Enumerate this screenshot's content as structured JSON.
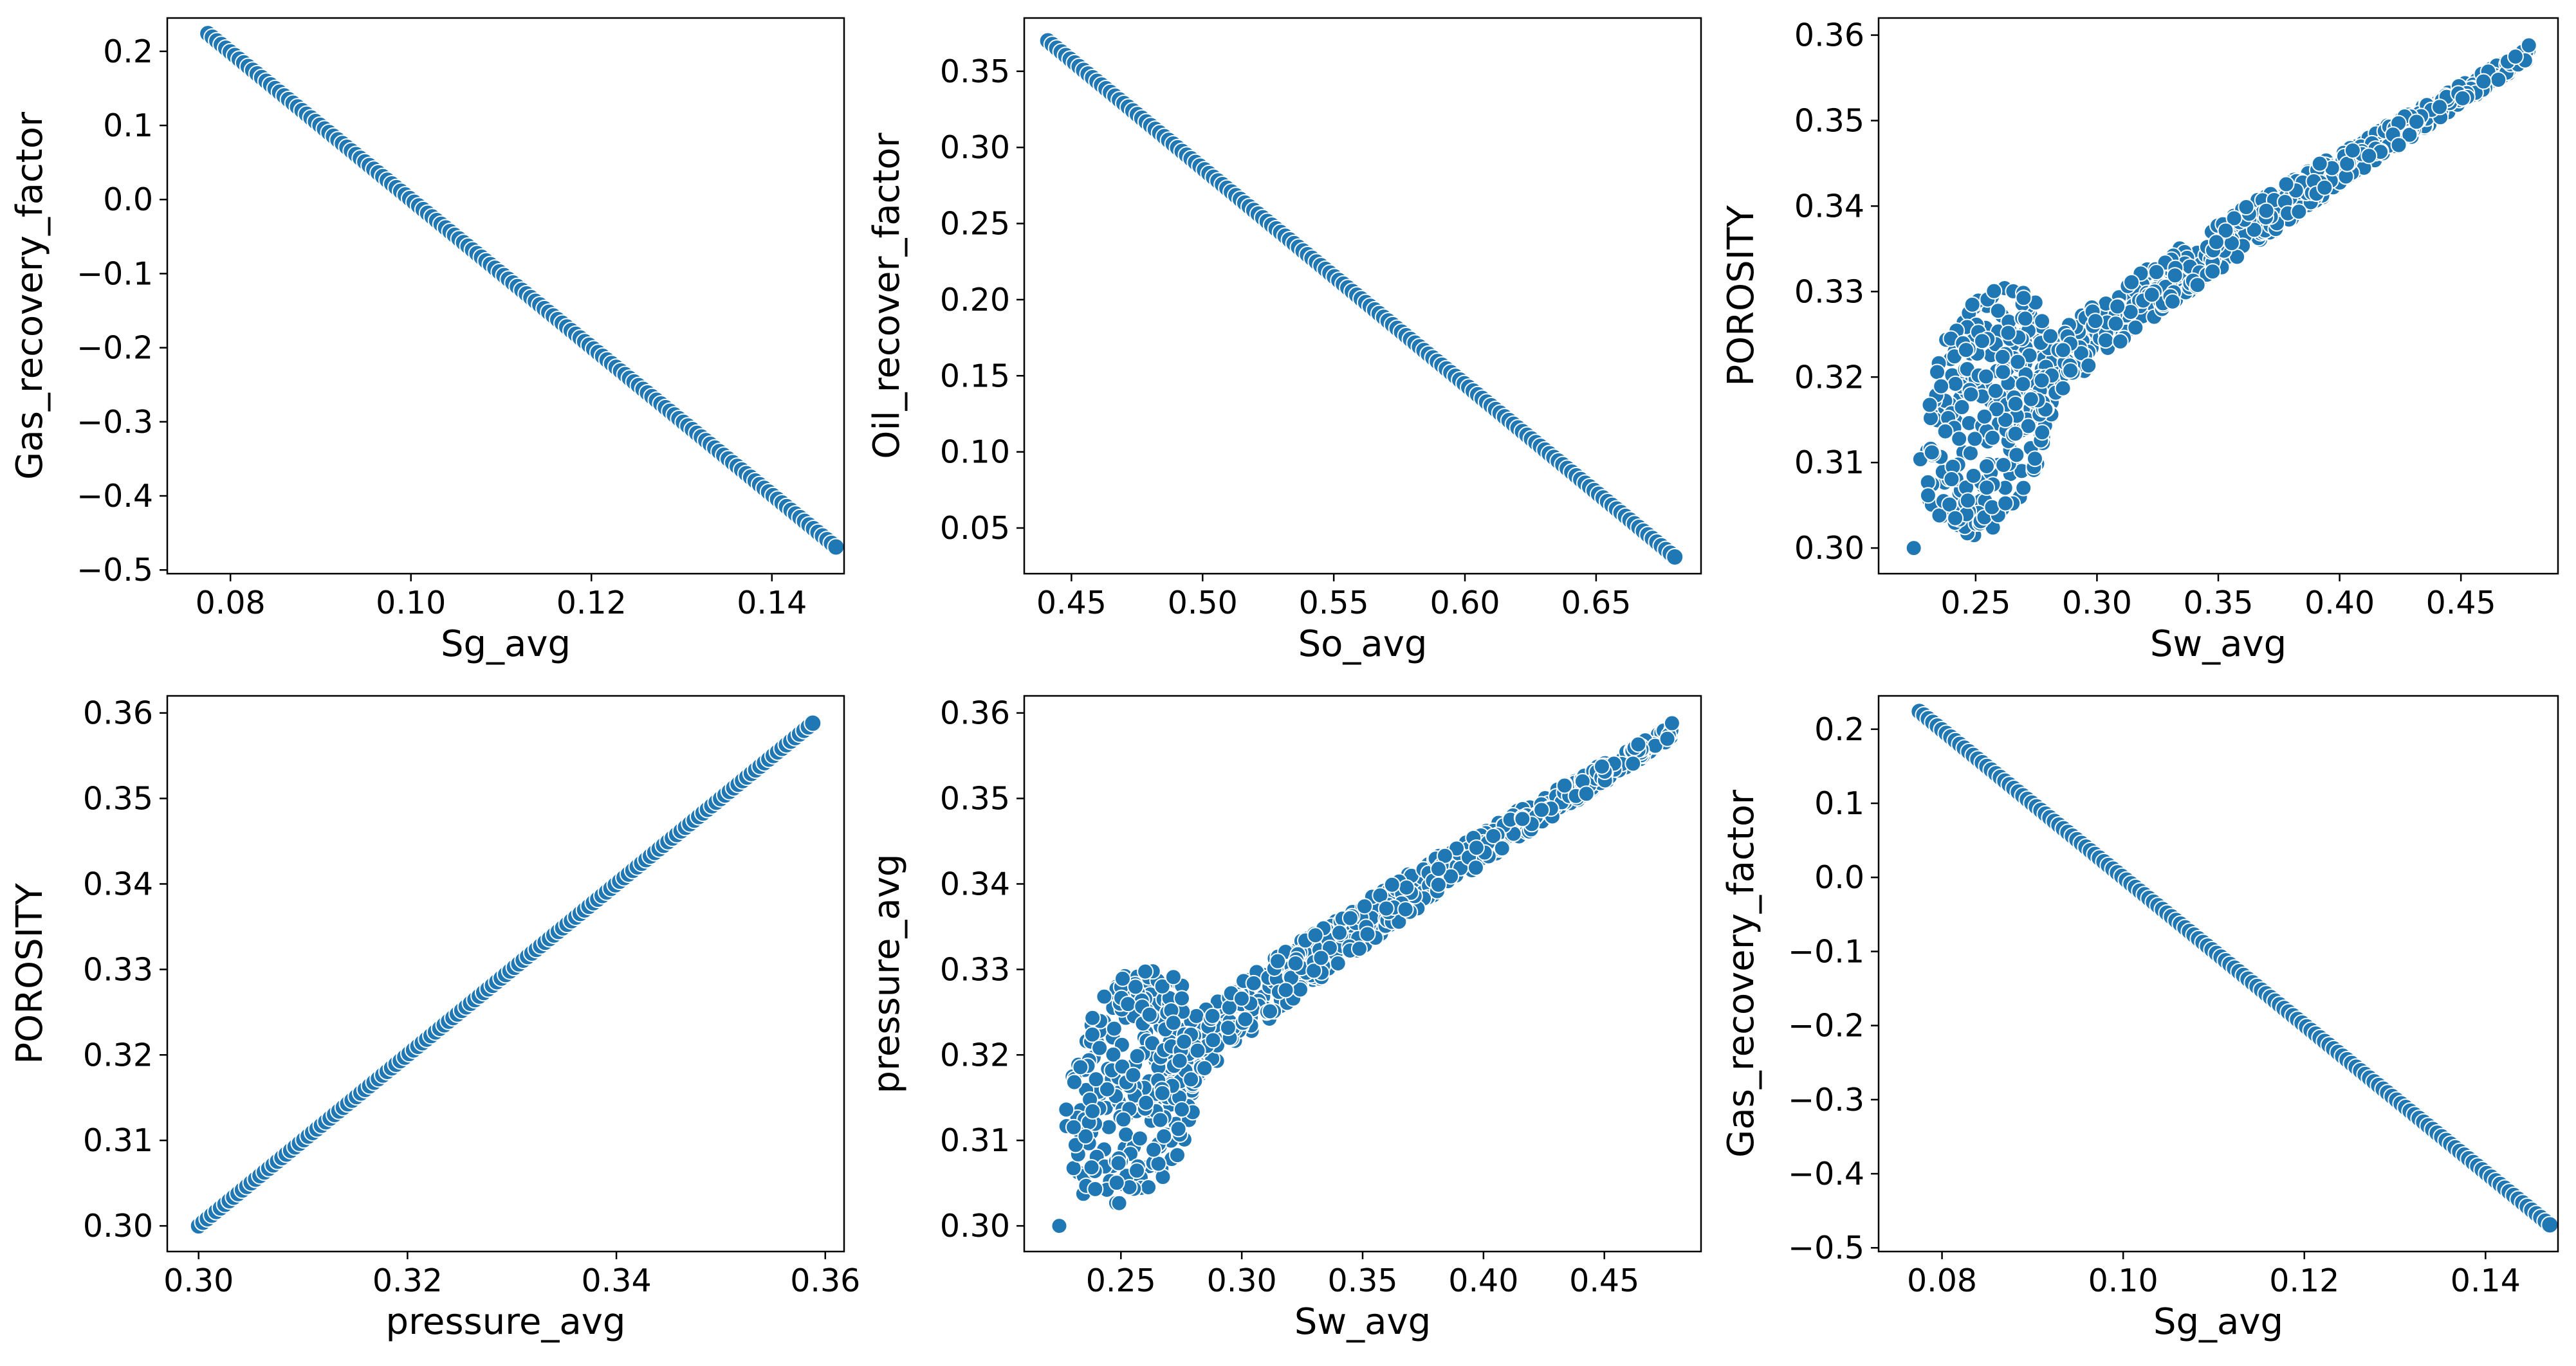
{
  "figure": {
    "layout": "2x3 grid of scatter plots"
  },
  "style": {
    "marker_color": "#1f77b4",
    "marker_edge_color": "#ffffff",
    "background": "#ffffff",
    "axes_color": "#000000"
  },
  "chart_data": [
    {
      "type": "scatter",
      "id": "sg-vs-gas-top",
      "xlabel": "Sg_avg",
      "ylabel": "Gas_recovery_factor",
      "xlim": [
        0.073,
        0.148
      ],
      "ylim": [
        -0.505,
        0.245
      ],
      "xticks": [
        0.08,
        0.1,
        0.12,
        0.14
      ],
      "xtick_labels": [
        "0.08",
        "0.10",
        "0.12",
        "0.14"
      ],
      "yticks": [
        0.2,
        0.1,
        0.0,
        -0.1,
        -0.2,
        -0.3,
        -0.4,
        -0.5
      ],
      "ytick_labels": [
        "0.2",
        "0.1",
        "0.0",
        "−0.1",
        "−0.2",
        "−0.3",
        "−0.4",
        "−0.5"
      ],
      "pattern": "line",
      "points": [
        [
          0.0775,
          0.224
        ],
        [
          0.1471,
          -0.469
        ]
      ]
    },
    {
      "type": "scatter",
      "id": "so-vs-oil",
      "xlabel": "So_avg",
      "ylabel": "Oil_recover_factor",
      "xlim": [
        0.432,
        0.69
      ],
      "ylim": [
        0.02,
        0.385
      ],
      "xticks": [
        0.45,
        0.5,
        0.55,
        0.6,
        0.65
      ],
      "xtick_labels": [
        "0.45",
        "0.50",
        "0.55",
        "0.60",
        "0.65"
      ],
      "yticks": [
        0.35,
        0.3,
        0.25,
        0.2,
        0.15,
        0.1,
        0.05
      ],
      "ytick_labels": [
        "0.35",
        "0.30",
        "0.25",
        "0.20",
        "0.15",
        "0.10",
        "0.05"
      ],
      "pattern": "line",
      "points": [
        [
          0.441,
          0.37
        ],
        [
          0.68,
          0.031
        ]
      ]
    },
    {
      "type": "scatter",
      "id": "sw-vs-porosity",
      "xlabel": "Sw_avg",
      "ylabel": "POROSITY",
      "xlim": [
        0.21,
        0.49
      ],
      "ylim": [
        0.297,
        0.362
      ],
      "xticks": [
        0.25,
        0.3,
        0.35,
        0.4,
        0.45
      ],
      "xtick_labels": [
        "0.25",
        "0.30",
        "0.35",
        "0.40",
        "0.45"
      ],
      "yticks": [
        0.36,
        0.35,
        0.34,
        0.33,
        0.32,
        0.31,
        0.3
      ],
      "ytick_labels": [
        "0.36",
        "0.35",
        "0.34",
        "0.33",
        "0.32",
        "0.31",
        "0.30"
      ],
      "pattern": "band",
      "points": [
        [
          0.2245,
          0.3
        ],
        [
          0.478,
          0.3588
        ]
      ]
    },
    {
      "type": "scatter",
      "id": "pressure-vs-porosity",
      "xlabel": "pressure_avg",
      "ylabel": "POROSITY",
      "xlim": [
        0.297,
        0.3618
      ],
      "ylim": [
        0.297,
        0.362
      ],
      "xticks": [
        0.3,
        0.32,
        0.34,
        0.36
      ],
      "xtick_labels": [
        "0.30",
        "0.32",
        "0.34",
        "0.36"
      ],
      "yticks": [
        0.36,
        0.35,
        0.34,
        0.33,
        0.32,
        0.31,
        0.3
      ],
      "ytick_labels": [
        "0.36",
        "0.35",
        "0.34",
        "0.33",
        "0.32",
        "0.31",
        "0.30"
      ],
      "pattern": "line",
      "points": [
        [
          0.3,
          0.3
        ],
        [
          0.3588,
          0.3588
        ]
      ]
    },
    {
      "type": "scatter",
      "id": "sw-vs-pressure",
      "xlabel": "Sw_avg",
      "ylabel": "pressure_avg",
      "xlim": [
        0.21,
        0.49
      ],
      "ylim": [
        0.297,
        0.362
      ],
      "xticks": [
        0.25,
        0.3,
        0.35,
        0.4,
        0.45
      ],
      "xtick_labels": [
        "0.25",
        "0.30",
        "0.35",
        "0.40",
        "0.45"
      ],
      "yticks": [
        0.36,
        0.35,
        0.34,
        0.33,
        0.32,
        0.31,
        0.3
      ],
      "ytick_labels": [
        "0.36",
        "0.35",
        "0.34",
        "0.33",
        "0.32",
        "0.31",
        "0.30"
      ],
      "pattern": "band",
      "points": [
        [
          0.2245,
          0.3
        ],
        [
          0.478,
          0.3588
        ]
      ]
    },
    {
      "type": "scatter",
      "id": "sg-vs-gas-bottom",
      "xlabel": "Sg_avg",
      "ylabel": "Gas_recovery_factor",
      "xlim": [
        0.073,
        0.148
      ],
      "ylim": [
        -0.505,
        0.245
      ],
      "xticks": [
        0.08,
        0.1,
        0.12,
        0.14
      ],
      "xtick_labels": [
        "0.08",
        "0.10",
        "0.12",
        "0.14"
      ],
      "yticks": [
        0.2,
        0.1,
        0.0,
        -0.1,
        -0.2,
        -0.3,
        -0.4,
        -0.5
      ],
      "ytick_labels": [
        "0.2",
        "0.1",
        "0.0",
        "−0.1",
        "−0.2",
        "−0.3",
        "−0.4",
        "−0.5"
      ],
      "pattern": "line",
      "points": [
        [
          0.0775,
          0.224
        ],
        [
          0.1471,
          -0.469
        ]
      ]
    }
  ]
}
